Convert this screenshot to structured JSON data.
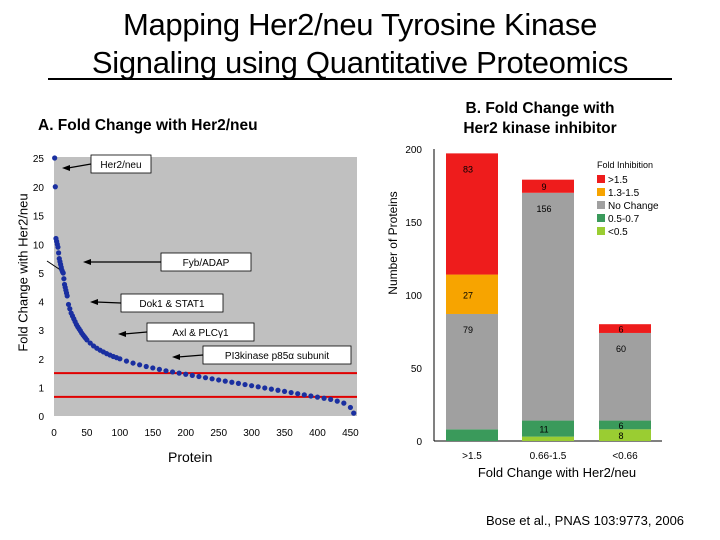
{
  "slide": {
    "title_line1": "Mapping Her2/neu Tyrosine Kinase",
    "title_line2": "Signaling using Quantitative Proteomics",
    "panel_a_label": "A.  Fold Change with Her2/neu",
    "panel_b_label_line1": "B.  Fold Change with",
    "panel_b_label_line2": "Her2 kinase inhibitor",
    "citation": "Bose et al., PNAS 103:9773, 2006"
  },
  "colors": {
    "plot_bg": "#c0c0c0",
    "points": "#1a2fa0",
    "threshold": "#e00000",
    "gt15": "#ee1c1c",
    "b1315": "#f7a400",
    "nochange": "#a0a0a0",
    "b0507": "#3a9a5b",
    "lt05": "#9acd32"
  },
  "chart_data": [
    {
      "type": "scatter",
      "title": "",
      "xlabel": "Protein",
      "ylabel": "Fold Change with Her2/neu",
      "x_ticks": [
        "0",
        "50",
        "100",
        "150",
        "200",
        "250",
        "300",
        "350",
        "400",
        "450"
      ],
      "y_ticks_lower": [
        "0",
        "1",
        "2",
        "3",
        "4",
        "5"
      ],
      "y_ticks_upper": [
        "10",
        "15",
        "20",
        "25"
      ],
      "xlim": [
        0,
        460
      ],
      "ylim": [
        0,
        25
      ],
      "axis_break": "broken y-axis: linear 0-5, compressed 5-25",
      "threshold_lines": [
        1.5,
        0.67
      ],
      "points_x": [
        1,
        2,
        3,
        4,
        5,
        6,
        7,
        8,
        9,
        10,
        11,
        12,
        13,
        14,
        15,
        16,
        17,
        18,
        19,
        20,
        22,
        24,
        26,
        28,
        30,
        32,
        34,
        36,
        38,
        40,
        42,
        44,
        46,
        48,
        50,
        55,
        60,
        65,
        70,
        75,
        80,
        85,
        90,
        95,
        100,
        110,
        120,
        130,
        140,
        150,
        160,
        170,
        180,
        190,
        200,
        210,
        220,
        230,
        240,
        250,
        260,
        270,
        280,
        290,
        300,
        310,
        320,
        330,
        340,
        350,
        360,
        370,
        380,
        390,
        400,
        410,
        420,
        430,
        440,
        450,
        455
      ],
      "points_y": [
        25,
        20,
        11,
        10.5,
        10,
        9.5,
        8.5,
        7.5,
        7,
        6.5,
        6,
        5.5,
        5.2,
        5,
        4.8,
        4.6,
        4.5,
        4.4,
        4.3,
        4.2,
        3.9,
        3.75,
        3.6,
        3.5,
        3.4,
        3.3,
        3.2,
        3.12,
        3.05,
        2.98,
        2.9,
        2.84,
        2.78,
        2.72,
        2.66,
        2.55,
        2.45,
        2.37,
        2.3,
        2.24,
        2.18,
        2.13,
        2.08,
        2.04,
        2.0,
        1.92,
        1.85,
        1.79,
        1.73,
        1.68,
        1.63,
        1.58,
        1.54,
        1.5,
        1.46,
        1.42,
        1.38,
        1.34,
        1.3,
        1.26,
        1.22,
        1.18,
        1.14,
        1.1,
        1.06,
        1.02,
        0.98,
        0.94,
        0.9,
        0.86,
        0.82,
        0.78,
        0.74,
        0.7,
        0.66,
        0.62,
        0.58,
        0.52,
        0.45,
        0.3,
        0.1
      ],
      "annotations": [
        {
          "label": "Her2/neu",
          "x": 3,
          "y": 25
        },
        {
          "label": "Fyb/ADAP",
          "x": 10,
          "y": 6.5
        },
        {
          "label": "Dok1 & STAT1",
          "x": 28,
          "y": 3.9
        },
        {
          "label": "Axl & PLCγ1",
          "x": 48,
          "y": 2.8
        },
        {
          "label": "PI3kinase p85α subunit",
          "x": 75,
          "y": 2.2
        }
      ]
    },
    {
      "type": "bar",
      "stacked": true,
      "title": "",
      "xlabel": "Fold Change with Her2/neu",
      "ylabel": "Number of Proteins",
      "categories": [
        ">1.5",
        "0.66-1.5",
        "<0.66"
      ],
      "ylim": [
        0,
        200
      ],
      "y_ticks": [
        "0",
        "50",
        "100",
        "150",
        "200"
      ],
      "legend_title": "Fold Inhibition",
      "legend_position": "top-right",
      "series": [
        {
          "name": "<0.5",
          "color_key": "lt05",
          "values": [
            0,
            3,
            8
          ]
        },
        {
          "name": "0.5-0.7",
          "color_key": "b0507",
          "values": [
            8,
            11,
            6
          ]
        },
        {
          "name": "No Change",
          "color_key": "nochange",
          "values": [
            79,
            156,
            60
          ]
        },
        {
          "name": "1.3-1.5",
          "color_key": "b1315",
          "values": [
            27,
            0,
            0
          ]
        },
        {
          "name": ">1.5",
          "color_key": "gt15",
          "values": [
            83,
            9,
            6
          ]
        }
      ],
      "bar_labels": [
        [
          "",
          "",
          "79",
          "27",
          "83"
        ],
        [
          "",
          "11",
          "156",
          "",
          "9"
        ],
        [
          "8",
          "6",
          "60",
          "",
          "6"
        ]
      ],
      "legend_order": [
        ">1.5",
        "1.3-1.5",
        "No Change",
        "0.5-0.7",
        "<0.5"
      ]
    }
  ]
}
